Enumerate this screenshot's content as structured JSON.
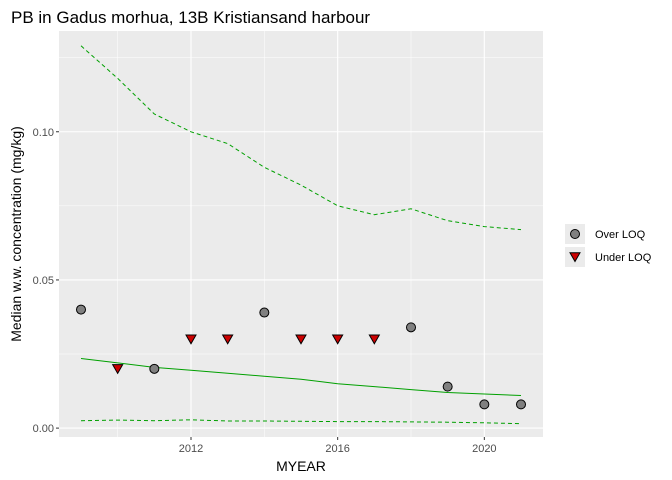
{
  "chart_data": {
    "type": "scatter",
    "title": "PB in Gadus morhua, 13B Kristiansand harbour",
    "xlabel": "MYEAR",
    "ylabel": "Median w.w. concentration (mg/kg)",
    "xlim": [
      2008.4,
      2021.6
    ],
    "ylim": [
      -0.003,
      0.134
    ],
    "x_ticks": [
      2012,
      2016,
      2020
    ],
    "y_ticks": [
      0.0,
      0.05,
      0.1
    ],
    "y_tick_labels": [
      "0.00",
      "0.05",
      "0.10"
    ],
    "grid": true,
    "legend_position": "right",
    "colors": {
      "panel_bg": "#ebebeb",
      "grid_major": "#ffffff",
      "trend": "#00a000",
      "over_loq_fill": "#808080",
      "under_loq_fill": "#cc0000",
      "point_stroke": "#000000"
    },
    "series": [
      {
        "name": "Over LOQ",
        "marker": "circle",
        "x": [
          2009,
          2011,
          2014,
          2018,
          2019,
          2020,
          2021
        ],
        "y": [
          0.04,
          0.02,
          0.039,
          0.034,
          0.014,
          0.008,
          0.008
        ]
      },
      {
        "name": "Under LOQ",
        "marker": "triangle-down",
        "x": [
          2010,
          2012,
          2013,
          2015,
          2016,
          2017
        ],
        "y": [
          0.02,
          0.03,
          0.03,
          0.03,
          0.03,
          0.03
        ]
      }
    ],
    "trend": {
      "x": [
        2009,
        2010,
        2011,
        2012,
        2013,
        2014,
        2015,
        2016,
        2017,
        2018,
        2019,
        2020,
        2021
      ],
      "median": [
        0.0235,
        0.022,
        0.0205,
        0.0195,
        0.0185,
        0.0175,
        0.0165,
        0.015,
        0.014,
        0.013,
        0.012,
        0.0115,
        0.011
      ],
      "upper": [
        0.129,
        0.118,
        0.106,
        0.1,
        0.096,
        0.088,
        0.082,
        0.075,
        0.072,
        0.074,
        0.07,
        0.068,
        0.067
      ],
      "lower": [
        0.0025,
        0.0027,
        0.0025,
        0.0028,
        0.0024,
        0.0024,
        0.0023,
        0.0022,
        0.0022,
        0.0021,
        0.002,
        0.0018,
        0.0015
      ]
    }
  }
}
